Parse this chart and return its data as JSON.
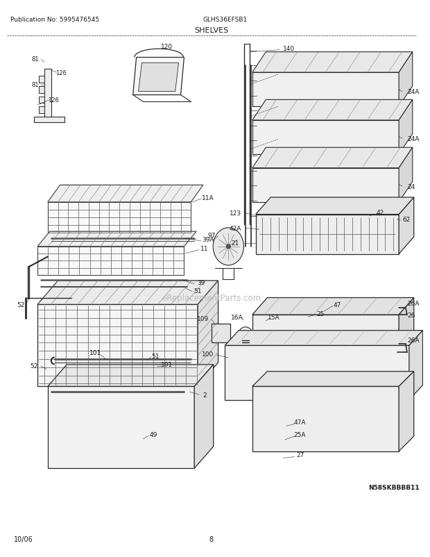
{
  "title": "SHELVES",
  "pub_no": "Publication No: 5995476545",
  "model": "GLHS36EFSB1",
  "date": "10/06",
  "page": "8",
  "watermark": "N58SKBBBB11",
  "bg_color": "#ffffff",
  "line_color": "#2a2a2a",
  "text_color": "#1a1a1a",
  "fig_w": 6.2,
  "fig_h": 8.03,
  "dpi": 100
}
